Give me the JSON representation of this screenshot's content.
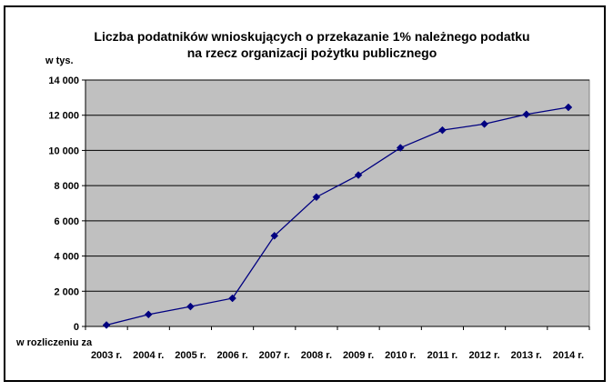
{
  "colors": {
    "plot_background": "#c0c0c0",
    "gridline": "#000000",
    "series_line": "#000080",
    "marker": "#000080",
    "frame": "#000000"
  },
  "chart_data": {
    "type": "line",
    "title": "Liczba podatników wnioskujących o przekazanie 1% należnego podatku",
    "subtitle": "na rzecz organizacji pożytku publicznego",
    "ylabel": "w tys.",
    "xlabel": "w rozliczeniu za",
    "ylim": [
      0,
      14000
    ],
    "ytick_values": [
      0,
      2000,
      4000,
      6000,
      8000,
      10000,
      12000,
      14000
    ],
    "ytick_labels": [
      "0",
      "2 000",
      "4 000",
      "6 000",
      "8 000",
      "10 000",
      "12 000",
      "14 000"
    ],
    "categories": [
      "2003 r.",
      "2004 r.",
      "2005 r.",
      "2006 r.",
      "2007 r.",
      "2008 r.",
      "2009 r.",
      "2010 r.",
      "2011 r.",
      "2012 r.",
      "2013 r.",
      "2014 r."
    ],
    "series": [
      {
        "values": [
          80,
          680,
          1130,
          1600,
          5150,
          7350,
          8600,
          10150,
          11150,
          11500,
          12050,
          12450
        ]
      }
    ],
    "grid": true,
    "marker": "diamond",
    "legend": "none"
  }
}
